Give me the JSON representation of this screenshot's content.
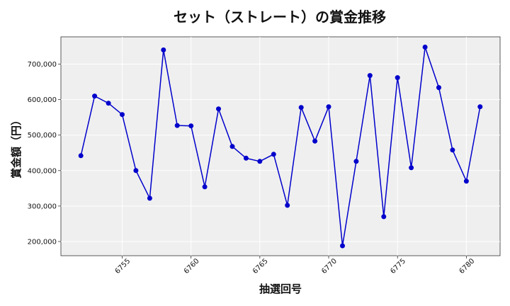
{
  "chart_data": {
    "type": "line",
    "title": "セット（ストレート）の賞金推移",
    "xlabel": "抽選回号",
    "ylabel": "賞金額（円）",
    "x": [
      6752,
      6753,
      6754,
      6755,
      6756,
      6757,
      6758,
      6759,
      6760,
      6761,
      6762,
      6763,
      6764,
      6765,
      6766,
      6767,
      6768,
      6769,
      6770,
      6771,
      6772,
      6773,
      6774,
      6775,
      6776,
      6777,
      6778,
      6779,
      6780,
      6781
    ],
    "series": [
      {
        "values": [
          442000,
          610000,
          590000,
          558000,
          400000,
          322000,
          740000,
          527000,
          526000,
          354000,
          574000,
          468000,
          435000,
          426000,
          446000,
          302000,
          578000,
          483000,
          580000,
          188000,
          426000,
          668000,
          270000,
          662000,
          408000,
          748000,
          634000,
          458000,
          370000,
          580000
        ]
      }
    ],
    "x_ticks": [
      6755,
      6760,
      6765,
      6770,
      6775,
      6780
    ],
    "x_tick_labels": [
      "6755",
      "6760",
      "6765",
      "6770",
      "6775",
      "6780"
    ],
    "y_ticks": [
      200000,
      300000,
      400000,
      500000,
      600000,
      700000
    ],
    "y_tick_labels": [
      "200,000",
      "300,000",
      "400,000",
      "500,000",
      "600,000",
      "700,000"
    ],
    "xlim": [
      6750.55,
      6782.45
    ],
    "ylim": [
      160000,
      777000
    ],
    "grid": true,
    "colors": {
      "line": "#0000cc",
      "marker": "#0000cc",
      "plot_bg": "#efefef"
    }
  }
}
